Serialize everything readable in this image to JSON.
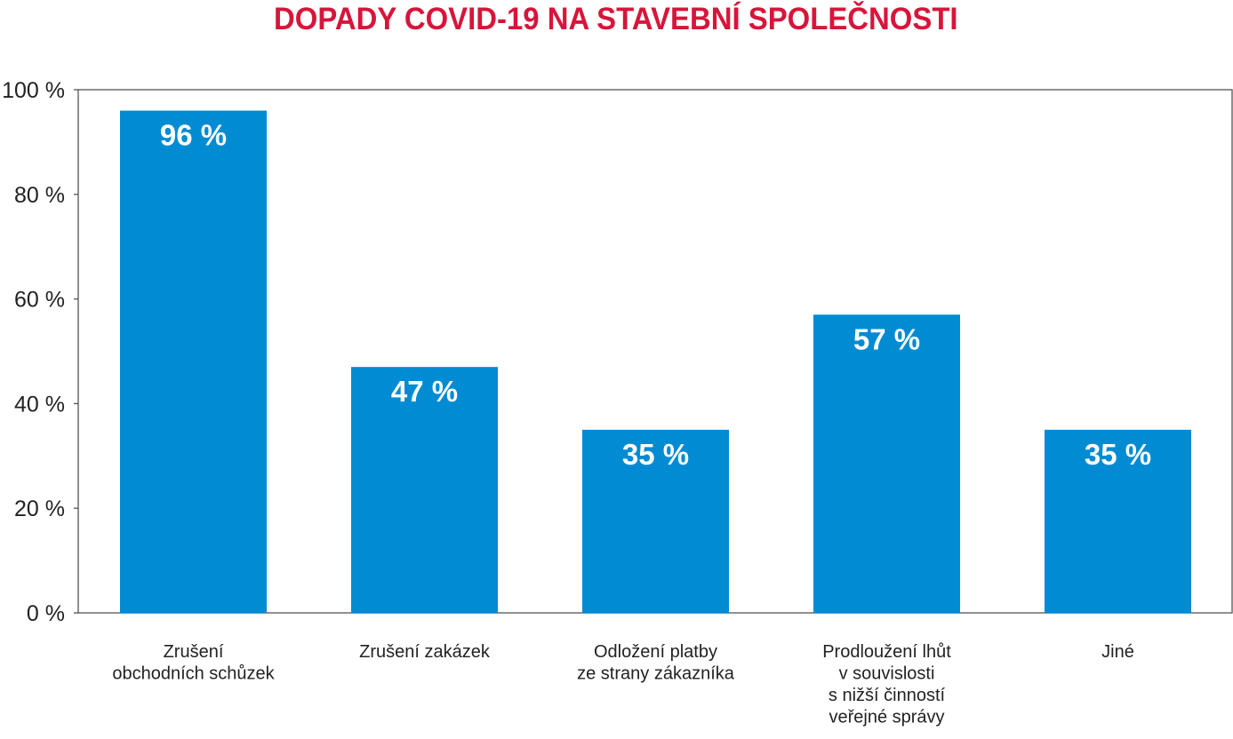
{
  "chart_data": {
    "type": "bar",
    "title": "DOPADY COVID-19 NA STAVEBNÍ SPOLEČNOSTI",
    "categories": [
      [
        "Zrušení",
        "obchodních schůzek"
      ],
      [
        "Zrušení zakázek"
      ],
      [
        "Odložení platby",
        "ze strany zákazníka"
      ],
      [
        "Prodloužení lhůt",
        "v souvislosti",
        "s nižší činností",
        "veřejné správy"
      ],
      [
        "Jiné"
      ]
    ],
    "values": [
      96,
      47,
      35,
      57,
      35
    ],
    "value_labels": [
      "96 %",
      "47 %",
      "35 %",
      "57 %",
      "35 %"
    ],
    "yticks": [
      0,
      20,
      40,
      60,
      80,
      100
    ],
    "ytick_labels": [
      "0 %",
      "20 %",
      "40 %",
      "60 %",
      "80 %",
      "100 %"
    ],
    "ylim": [
      0,
      100
    ],
    "xlabel": "",
    "ylabel": "",
    "grid": false,
    "colors": {
      "bar": "#008bd2",
      "title": "#d7153a",
      "axis": "#555555"
    }
  }
}
